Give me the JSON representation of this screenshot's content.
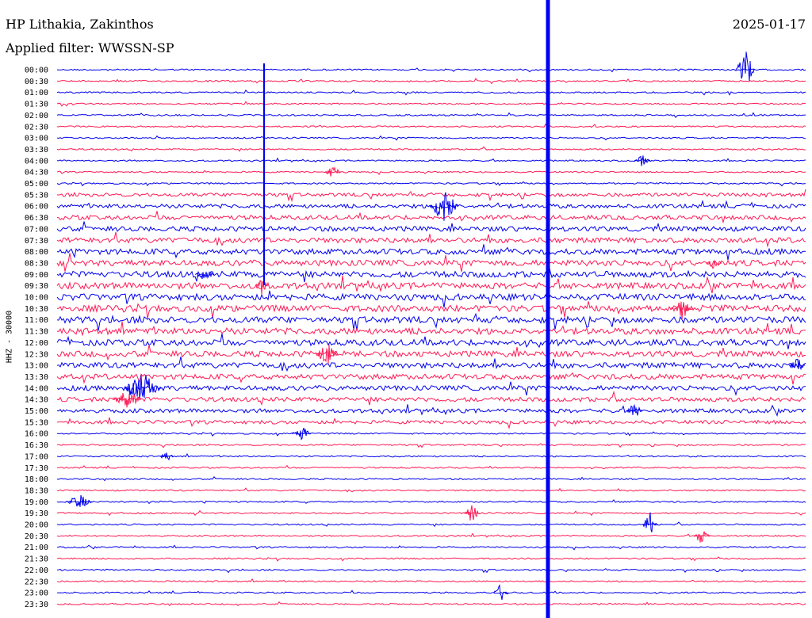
{
  "header": {
    "station": "HP Lithakia, Zakinthos",
    "date": "2025-01-17",
    "filter": "Applied filter: WWSSN-SP"
  },
  "y_axis_label": "HHZ - 30000",
  "colors": {
    "trace_a": "#0000ee",
    "trace_b": "#ff1a55"
  },
  "time_labels": [
    "00:00",
    "00:30",
    "01:00",
    "01:30",
    "02:00",
    "02:30",
    "03:00",
    "03:30",
    "04:00",
    "04:30",
    "05:00",
    "05:30",
    "06:00",
    "06:30",
    "07:00",
    "07:30",
    "08:00",
    "08:30",
    "09:00",
    "09:30",
    "10:00",
    "10:30",
    "11:00",
    "11:30",
    "12:00",
    "12:30",
    "13:00",
    "13:30",
    "14:00",
    "14:30",
    "15:00",
    "15:30",
    "16:00",
    "16:30",
    "17:00",
    "17:30",
    "18:00",
    "18:30",
    "19:00",
    "19:30",
    "20:00",
    "20:30",
    "21:00",
    "21:30",
    "22:00",
    "22:30",
    "23:00",
    "23:30"
  ]
}
